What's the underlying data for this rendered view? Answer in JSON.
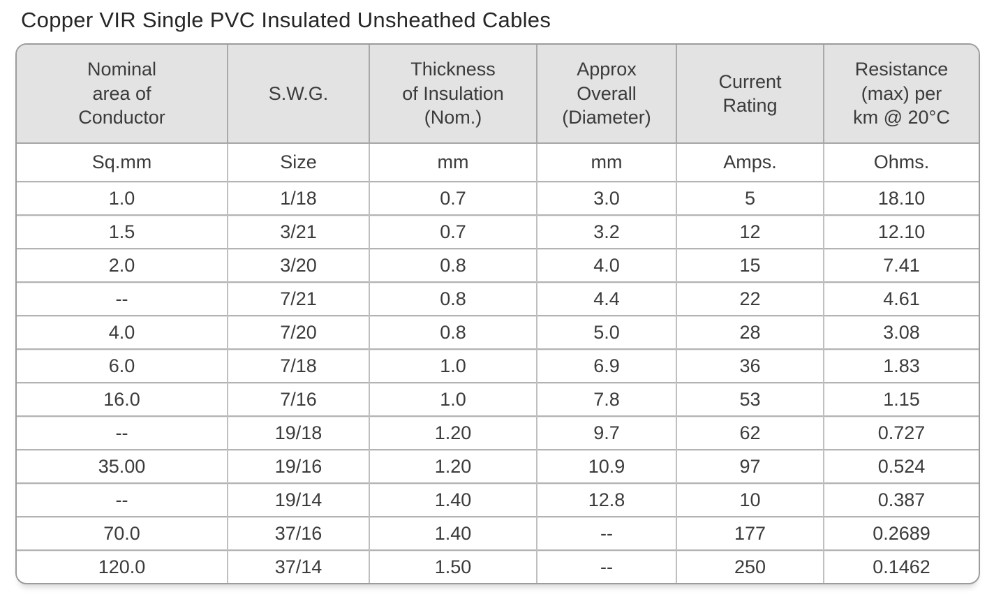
{
  "page": {
    "title": "Copper VIR Single PVC Insulated Unsheathed Cables"
  },
  "table": {
    "columns": [
      {
        "label": "Nominal\narea of\nConductor",
        "unit": "Sq.mm"
      },
      {
        "label": "S.W.G.",
        "unit": "Size"
      },
      {
        "label": "Thickness\nof Insulation\n(Nom.)",
        "unit": "mm"
      },
      {
        "label": "Approx\nOverall\n(Diameter)",
        "unit": "mm"
      },
      {
        "label": "Current\nRating",
        "unit": "Amps."
      },
      {
        "label": "Resistance\n(max) per\nkm @ 20°C",
        "unit": "Ohms."
      }
    ],
    "rows": [
      [
        "1.0",
        "1/18",
        "0.7",
        "3.0",
        "5",
        "18.10"
      ],
      [
        "1.5",
        "3/21",
        "0.7",
        "3.2",
        "12",
        "12.10"
      ],
      [
        "2.0",
        "3/20",
        "0.8",
        "4.0",
        "15",
        "7.41"
      ],
      [
        "--",
        "7/21",
        "0.8",
        "4.4",
        "22",
        "4.61"
      ],
      [
        "4.0",
        "7/20",
        "0.8",
        "5.0",
        "28",
        "3.08"
      ],
      [
        "6.0",
        "7/18",
        "1.0",
        "6.9",
        "36",
        "1.83"
      ],
      [
        "16.0",
        "7/16",
        "1.0",
        "7.8",
        "53",
        "1.15"
      ],
      [
        "--",
        "19/18",
        "1.20",
        "9.7",
        "62",
        "0.727"
      ],
      [
        "35.00",
        "19/16",
        "1.20",
        "10.9",
        "97",
        "0.524"
      ],
      [
        "--",
        "19/14",
        "1.40",
        "12.8",
        "10",
        "0.387"
      ],
      [
        "70.0",
        "37/16",
        "1.40",
        "--",
        "177",
        "0.2689"
      ],
      [
        "120.0",
        "37/14",
        "1.50",
        "--",
        "250",
        "0.1462"
      ]
    ]
  }
}
